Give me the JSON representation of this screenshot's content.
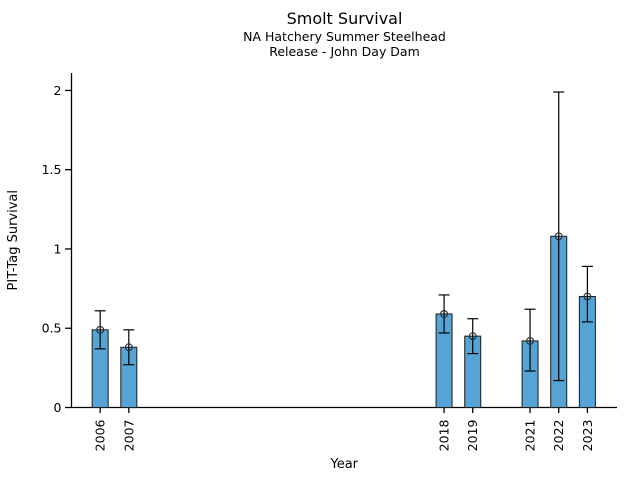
{
  "figure": {
    "title": "Smolt Survival",
    "subtitle_line1": "NA Hatchery Summer Steelhead",
    "subtitle_line2": "Release - John Day Dam"
  },
  "chart_data": {
    "type": "bar",
    "title": "Smolt Survival",
    "subtitle": [
      "NA Hatchery Summer Steelhead",
      "Release - John Day Dam"
    ],
    "xlabel": "Year",
    "ylabel": "PIT-Tag Survival",
    "categories": [
      "2006",
      "2007",
      "2018",
      "2019",
      "2021",
      "2022",
      "2023"
    ],
    "years": [
      2006,
      2007,
      2018,
      2019,
      2021,
      2022,
      2023
    ],
    "values": [
      0.49,
      0.38,
      0.59,
      0.45,
      0.42,
      1.08,
      0.7
    ],
    "error_low": [
      0.37,
      0.27,
      0.47,
      0.34,
      0.23,
      0.17,
      0.54
    ],
    "error_high": [
      0.61,
      0.49,
      0.71,
      0.56,
      0.62,
      1.99,
      0.89
    ],
    "marker": "open-circle",
    "grid": false,
    "legend": "none",
    "x_axis": {
      "scale": "linear-year",
      "tick_labels": [
        "2006",
        "2007",
        "2018",
        "2019",
        "2021",
        "2022",
        "2023"
      ],
      "tick_label_rotation_deg": 90
    },
    "y_axis": {
      "tick_labels": [
        "0",
        "0.5",
        "1",
        "1.5",
        "2"
      ],
      "tick_values": [
        0,
        0.5,
        1,
        1.5,
        2
      ],
      "lim": [
        0,
        2.11
      ]
    },
    "colors": {
      "bar_fill": "#56a4d6",
      "bar_edge": "#1a1a1a",
      "error_bar": "#000000",
      "marker_edge": "#2b2b2b",
      "axis": "#000000",
      "text": "#000000",
      "background": "#ffffff"
    }
  }
}
